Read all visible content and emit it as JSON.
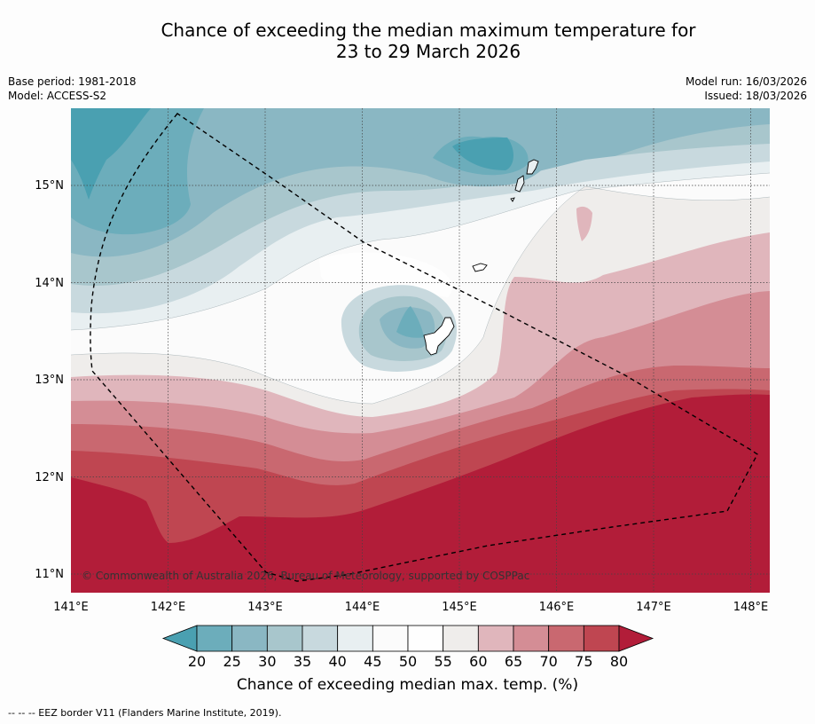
{
  "title": {
    "line1": "Chance of exceeding the median maximum temperature for",
    "line2": "23 to 29 March 2026"
  },
  "meta": {
    "base_period": "Base period: 1981-2018",
    "model": "Model: ACCESS-S2",
    "model_run": "Model run: 16/03/2026",
    "issued": "Issued: 18/03/2026"
  },
  "map": {
    "lat_labels": [
      "15°N",
      "14°N",
      "13°N",
      "12°N",
      "11°N"
    ],
    "lon_labels": [
      "141°E",
      "142°E",
      "143°E",
      "144°E",
      "145°E",
      "146°E",
      "147°E",
      "148°E"
    ],
    "copyright": "© Commonwealth of Australia 2026, Bureau of Meteorology, supported by COSPPac"
  },
  "colorbar": {
    "ticks": [
      "20",
      "25",
      "30",
      "35",
      "40",
      "45",
      "50",
      "55",
      "60",
      "65",
      "70",
      "75",
      "80"
    ],
    "colors": [
      "#4aa0b1",
      "#6cadbb",
      "#8ab7c3",
      "#a8c6cc",
      "#c8d9de",
      "#e8eff1",
      "#fbfbfb",
      "#fefefe",
      "#efedeb",
      "#e0b6bc",
      "#d48d95",
      "#c96870",
      "#bf4651",
      "#b21d39"
    ],
    "label": "Chance of exceeding median max. temp. (%)"
  },
  "legend": {
    "eez": "--  --  -- EEZ border V11 (Flanders Marine Institute, 2019)."
  }
}
